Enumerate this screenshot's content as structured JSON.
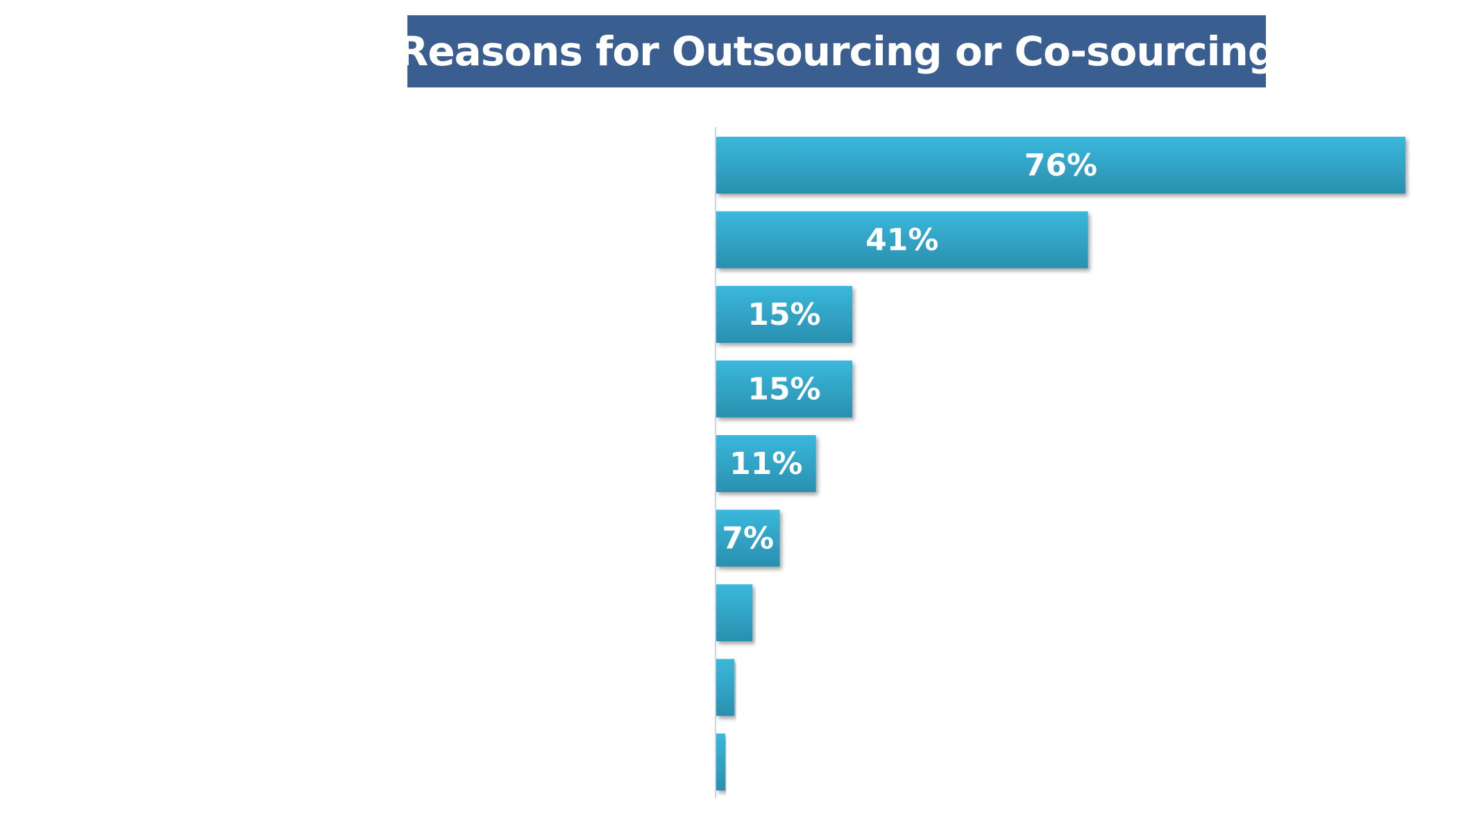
{
  "title": "Reasons for Outsourcing or Co-sourcing",
  "colors": {
    "title_bg": "#3a5e8f",
    "bar_top": "#3ab8db",
    "bar_bottom": "#2a8faf",
    "axis": "#c9d6e3"
  },
  "chart_data": {
    "type": "bar",
    "orientation": "horizontal",
    "title": "Reasons for Outsourcing or Co-sourcing",
    "categories": [
      "",
      "",
      "",
      "",
      "",
      "",
      "",
      "",
      ""
    ],
    "values": [
      76,
      41,
      15,
      15,
      11,
      7,
      4,
      2,
      1
    ],
    "data_labels": [
      "76%",
      "41%",
      "15%",
      "15%",
      "11%",
      "7%",
      "",
      "",
      ""
    ],
    "xlim": [
      0,
      76
    ],
    "xlabel": "",
    "ylabel": "",
    "grid": false
  }
}
